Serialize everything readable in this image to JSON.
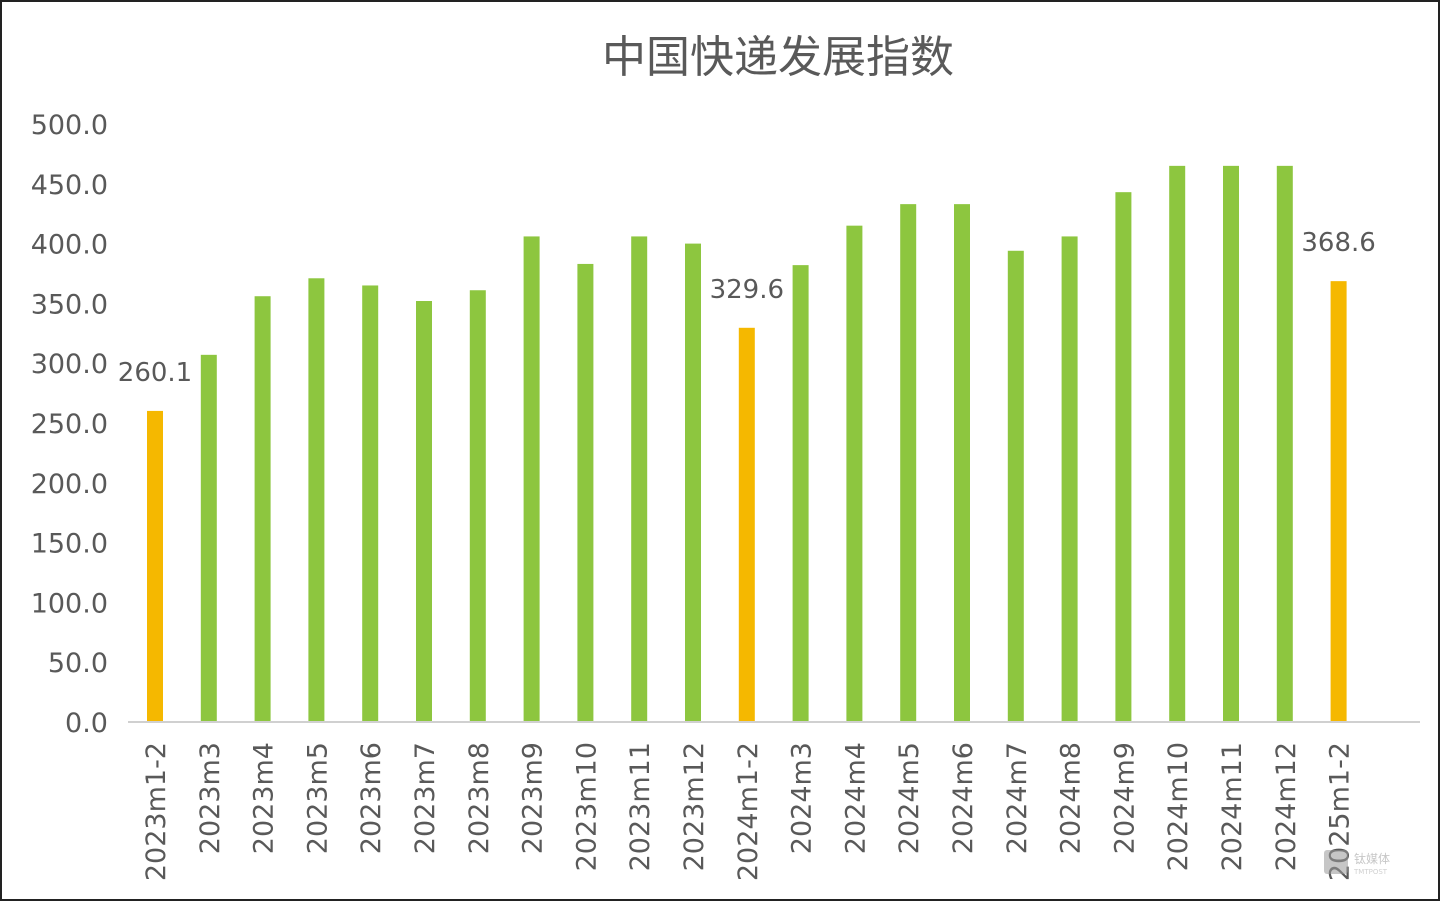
{
  "chart_data": {
    "type": "bar",
    "title": "中国快递发展指数",
    "xlabel": "",
    "ylabel": "",
    "ylim": [
      0,
      500
    ],
    "yticks": [
      "0.0",
      "50.0",
      "100.0",
      "150.0",
      "200.0",
      "250.0",
      "300.0",
      "350.0",
      "400.0",
      "450.0",
      "500.0"
    ],
    "grid": false,
    "categories": [
      "2023m1-2",
      "2023m3",
      "2023m4",
      "2023m5",
      "2023m6",
      "2023m7",
      "2023m8",
      "2023m9",
      "2023m10",
      "2023m11",
      "2023m12",
      "2024m1-2",
      "2024m3",
      "2024m4",
      "2024m5",
      "2024m6",
      "2024m7",
      "2024m8",
      "2024m9",
      "2024m10",
      "2024m11",
      "2024m12",
      "2025m1-2"
    ],
    "values": [
      260.1,
      307,
      356,
      371,
      365,
      352,
      361,
      406,
      383,
      406,
      400,
      329.6,
      382,
      415,
      433,
      433,
      394,
      406,
      443,
      465,
      465,
      465,
      368.6
    ],
    "highlighted": [
      "2023m1-2",
      "2024m1-2",
      "2025m1-2"
    ],
    "data_labels": {
      "2023m1-2": "260.1",
      "2024m1-2": "329.6",
      "2025m1-2": "368.6"
    },
    "colors": {
      "normal": "#8DC63F",
      "highlight": "#F5B800",
      "axis": "#d0d0d0",
      "text": "#595959"
    }
  },
  "watermark": {
    "logo_text": "钛媒体",
    "logo_subtext": "TMTPOST"
  }
}
